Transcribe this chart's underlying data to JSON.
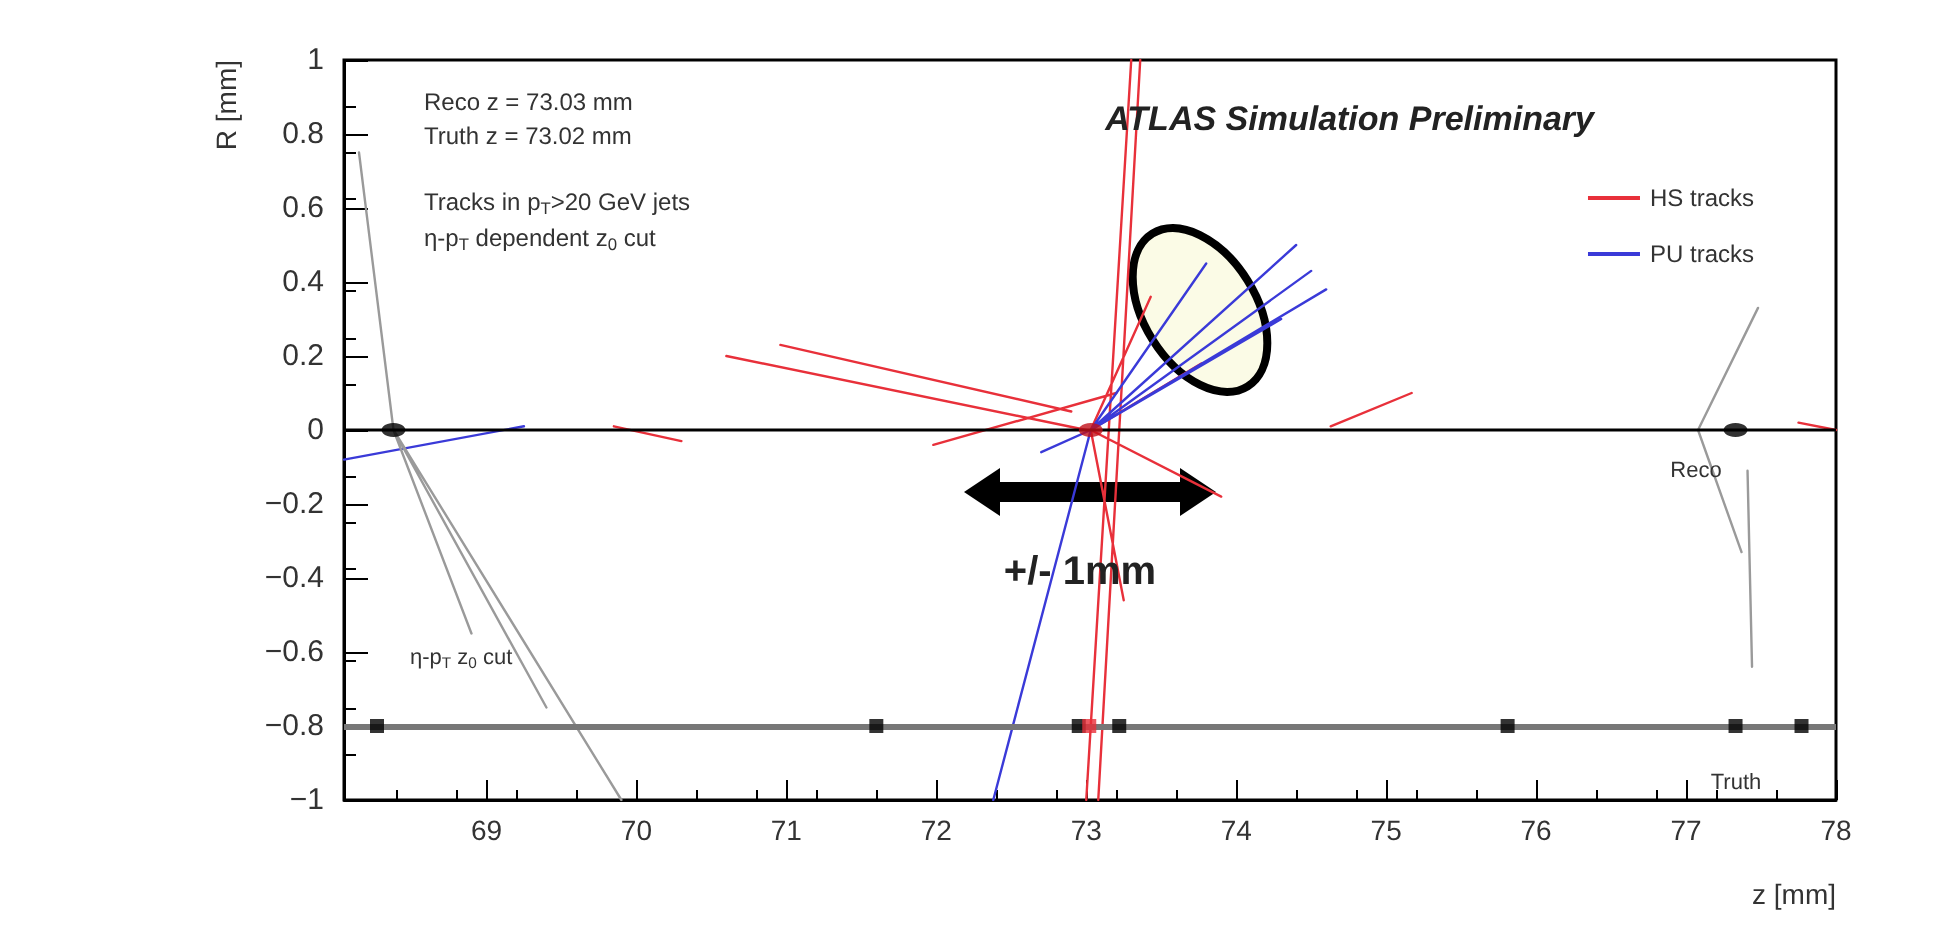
{
  "chart_data": {
    "type": "line",
    "title": "ATLAS Simulation Preliminary",
    "xlabel": "z [mm]",
    "ylabel": "R [mm]",
    "xlim": [
      68.05,
      78
    ],
    "xticks": [
      69,
      70,
      71,
      72,
      73,
      74,
      75,
      76,
      77,
      78
    ],
    "ylim": [
      -1,
      1
    ],
    "yticks": [
      -1,
      -0.8,
      -0.6,
      -0.4,
      -0.2,
      0,
      0.2,
      0.4,
      0.6,
      0.8,
      1
    ],
    "grid": false,
    "legend": "top right",
    "marker": "none",
    "line_style": "solid",
    "series": [
      {
        "name": "HS tracks",
        "color": "#e8303a",
        "x": [
          73.08,
          73.36,
          null,
          73.0,
          73.3,
          null,
          70.6,
          73.0,
          null,
          70.96,
          72.9,
          null,
          69.85,
          70.3,
          null,
          71.98,
          73.2,
          null,
          74.63,
          75.17,
          null,
          73.03,
          73.9,
          null,
          73.03,
          73.25,
          null,
          77.75,
          78.0,
          null,
          73.03,
          73.77,
          null,
          73.03,
          73.43
        ],
        "values": [
          -1,
          1,
          null,
          -1,
          1,
          null,
          0.2,
          0.0,
          null,
          0.23,
          0.05,
          null,
          0.01,
          -0.03,
          null,
          -0.04,
          0.1,
          null,
          0.01,
          0.1,
          null,
          0,
          -0.18,
          null,
          0,
          -0.46,
          null,
          0.02,
          0.0,
          null,
          0,
          0.18,
          null,
          0,
          0.36
        ]
      },
      {
        "name": "PU tracks",
        "color": "#3a3ad8",
        "x": [
          72.38,
          73.03,
          null,
          73.03,
          74.5,
          null,
          73.03,
          74.6,
          null,
          73.03,
          74.4,
          null,
          73.03,
          73.8,
          null,
          73.03,
          74.3,
          null,
          68.05,
          69.25,
          null,
          73.03,
          72.7
        ],
        "values": [
          -1,
          0,
          null,
          0,
          0.43,
          null,
          0,
          0.38,
          null,
          0,
          0.5,
          null,
          0,
          0.45,
          null,
          0,
          0.3,
          null,
          -0.08,
          0.01,
          null,
          0,
          -0.06
        ]
      },
      {
        "color": "#9a9a9a",
        "x": [
          68.15,
          68.38,
          null,
          68.38,
          69.9,
          null,
          68.38,
          69.4,
          null,
          68.38,
          68.9,
          null,
          77.08,
          77.48,
          null,
          77.08,
          77.37,
          null,
          77.41,
          77.44
        ],
        "values": [
          0.75,
          0,
          null,
          0,
          -1,
          null,
          0,
          -0.75,
          null,
          0,
          -0.55,
          null,
          0,
          0.33,
          null,
          0,
          -0.33,
          null,
          -0.11,
          -0.64
        ]
      },
      {
        "type": "scatter",
        "marker": "circle",
        "color": "#000000",
        "x": [
          68.38,
          73.03,
          77.33
        ],
        "values": [
          0,
          0,
          0
        ],
        "colors": [
          "#000000",
          "#c0101a",
          "#000000"
        ]
      },
      {
        "type": "scatter",
        "marker": "square",
        "color": "#000000",
        "x": [
          68.27,
          71.6,
          72.95,
          73.02,
          73.22,
          75.81,
          77.33,
          77.77
        ],
        "values": [
          -0.8,
          -0.8,
          -0.8,
          -0.8,
          -0.8,
          -0.8,
          -0.8,
          -0.8
        ],
        "colors": [
          "#000000",
          "#000000",
          "#000000",
          "#e8303a",
          "#000000",
          "#000000",
          "#000000",
          "#000000"
        ]
      }
    ],
    "ref_lines": [
      {
        "axis": "y",
        "value": 0,
        "color": "#000000"
      },
      {
        "axis": "y",
        "value": -0.8,
        "color": "#777777"
      }
    ],
    "annotations": [
      "Reco z = 73.03 mm",
      "Truth z = 73.02 mm",
      "Tracks in p$_{T}$>20 GeV jets",
      "η-p$_{T}$ dependent z$_{0}$ cut",
      "η-p$_{T}$ z$_{0}$ cut",
      "Reco",
      "Truth",
      "+/- 1mm"
    ]
  }
}
